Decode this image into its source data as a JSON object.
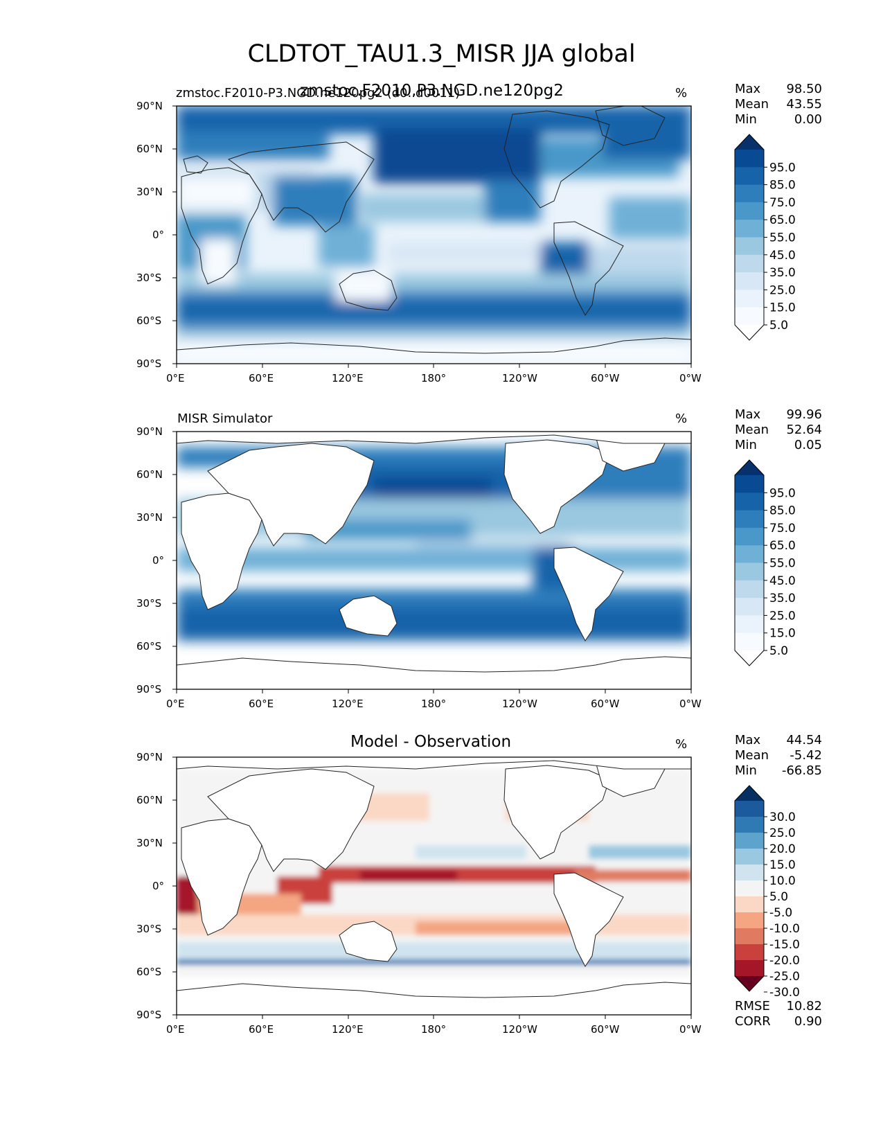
{
  "figure": {
    "title": "CLDTOT_TAU1.3_MISR JJA global"
  },
  "axes": {
    "lat_labels": [
      "90°N",
      "60°N",
      "30°N",
      "0°",
      "30°S",
      "60°S",
      "90°S"
    ],
    "lon_labels": [
      "0°E",
      "60°E",
      "120°E",
      "180°",
      "120°W",
      "60°W",
      "0°W"
    ]
  },
  "panels": [
    {
      "id": "model",
      "title_left": "zmstoc.F2010-P3.NGD.ne120pg2 (d0..d0011)",
      "title_center": "zmstoc.F2010.P3.NGD.ne120pg2",
      "units": "%",
      "stats": [
        {
          "label": "Max",
          "value": "98.50"
        },
        {
          "label": "Mean",
          "value": "43.55"
        },
        {
          "label": "Min",
          "value": "0.00"
        }
      ],
      "colorbar": {
        "ticks": [
          "95.0",
          "85.0",
          "75.0",
          "65.0",
          "55.0",
          "45.0",
          "35.0",
          "25.0",
          "15.0",
          "5.0"
        ],
        "colors": [
          "#08306b",
          "#084a93",
          "#1663aa",
          "#2e7ebc",
          "#4a98c9",
          "#6fb0d7",
          "#9ac8e0",
          "#bed8ec",
          "#d8e7f5",
          "#eaf3fb",
          "#f7fbff",
          "#ffffff"
        ]
      }
    },
    {
      "id": "obs",
      "title_left": "MISR Simulator",
      "units": "%",
      "stats": [
        {
          "label": "Max",
          "value": "99.96"
        },
        {
          "label": "Mean",
          "value": "52.64"
        },
        {
          "label": "Min",
          "value": "0.05"
        }
      ],
      "colorbar": {
        "ticks": [
          "95.0",
          "85.0",
          "75.0",
          "65.0",
          "55.0",
          "45.0",
          "35.0",
          "25.0",
          "15.0",
          "5.0"
        ],
        "colors": [
          "#08306b",
          "#084a93",
          "#1663aa",
          "#2e7ebc",
          "#4a98c9",
          "#6fb0d7",
          "#9ac8e0",
          "#bed8ec",
          "#d8e7f5",
          "#eaf3fb",
          "#f7fbff",
          "#ffffff"
        ]
      }
    },
    {
      "id": "diff",
      "title_center": "Model - Observation",
      "units": "%",
      "stats": [
        {
          "label": "Max",
          "value": "44.54"
        },
        {
          "label": "Mean",
          "value": "-5.42"
        },
        {
          "label": "Min",
          "value": "-66.85"
        }
      ],
      "extra_stats": [
        {
          "label": "RMSE",
          "value": "10.82"
        },
        {
          "label": "CORR",
          "value": "0.90"
        }
      ],
      "colorbar": {
        "ticks": [
          "30.0",
          "25.0",
          "20.0",
          "15.0",
          "10.0",
          "5.0",
          "-5.0",
          "-10.0",
          "-15.0",
          "-20.0",
          "-25.0",
          "-30.0"
        ],
        "colors": [
          "#053061",
          "#1b5a9c",
          "#2f79b5",
          "#5ea3cc",
          "#9ac8e0",
          "#d0e4ef",
          "#f4f4f4",
          "#fbd8c5",
          "#f4a582",
          "#e07b62",
          "#c9403d",
          "#a51629",
          "#67001f"
        ]
      }
    }
  ]
}
